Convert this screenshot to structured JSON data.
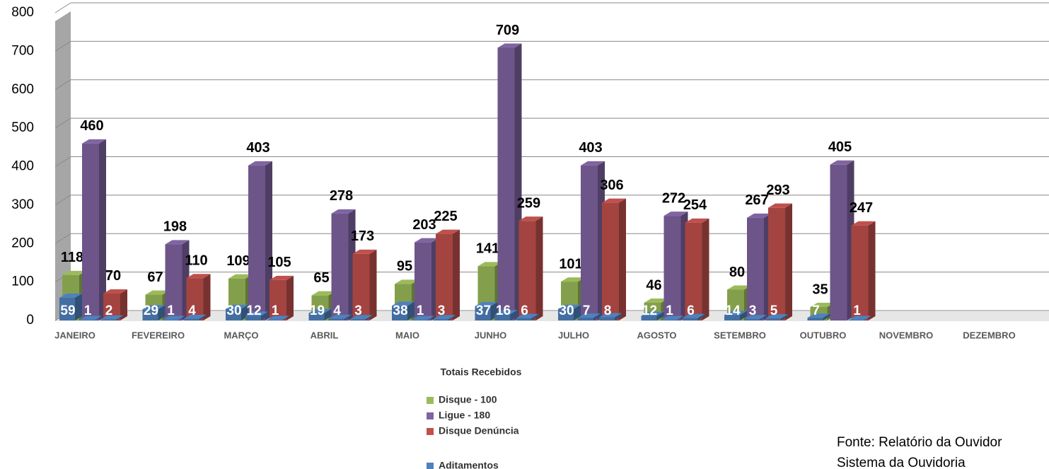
{
  "chart_data": {
    "type": "bar3d",
    "categories": [
      "JANEIRO",
      "FEVEREIRO",
      "MARÇO",
      "ABRIL",
      "MAIO",
      "JUNHO",
      "JULHO",
      "AGOSTO",
      "SETEMBRO",
      "OUTUBRO",
      "NOVEMBRO",
      "DEZEMBRO"
    ],
    "legend_title": "Totais Recebidos",
    "series": [
      {
        "name": "Disque - 100",
        "color": "#9bbb59",
        "values": [
          118,
          67,
          109,
          65,
          95,
          141,
          101,
          46,
          80,
          35,
          null,
          null
        ]
      },
      {
        "name": "Ligue - 180",
        "color": "#8064a2",
        "values": [
          460,
          198,
          403,
          278,
          203,
          709,
          403,
          272,
          267,
          405,
          null,
          null
        ]
      },
      {
        "name": "Disque Denúncia",
        "color": "#c0504d",
        "values": [
          70,
          110,
          105,
          173,
          225,
          259,
          306,
          254,
          293,
          247,
          null,
          null
        ]
      }
    ],
    "aditamentos": {
      "name": "Aditamentos",
      "color": "#4f81bd",
      "values": [
        [
          59,
          1,
          2
        ],
        [
          29,
          1,
          4
        ],
        [
          30,
          12,
          1
        ],
        [
          19,
          4,
          3
        ],
        [
          38,
          1,
          3
        ],
        [
          37,
          16,
          6
        ],
        [
          30,
          7,
          8
        ],
        [
          12,
          1,
          6
        ],
        [
          14,
          3,
          5
        ],
        [
          7,
          null,
          1
        ],
        [
          null,
          null,
          null
        ],
        [
          null,
          null,
          null
        ]
      ]
    },
    "ylim": [
      0,
      800
    ],
    "yticks": [
      0,
      100,
      200,
      300,
      400,
      500,
      600,
      700,
      800
    ],
    "grid": true,
    "source": [
      "Fonte: Relatório da Ouvidor",
      "Sistema da Ouvidoria"
    ]
  }
}
